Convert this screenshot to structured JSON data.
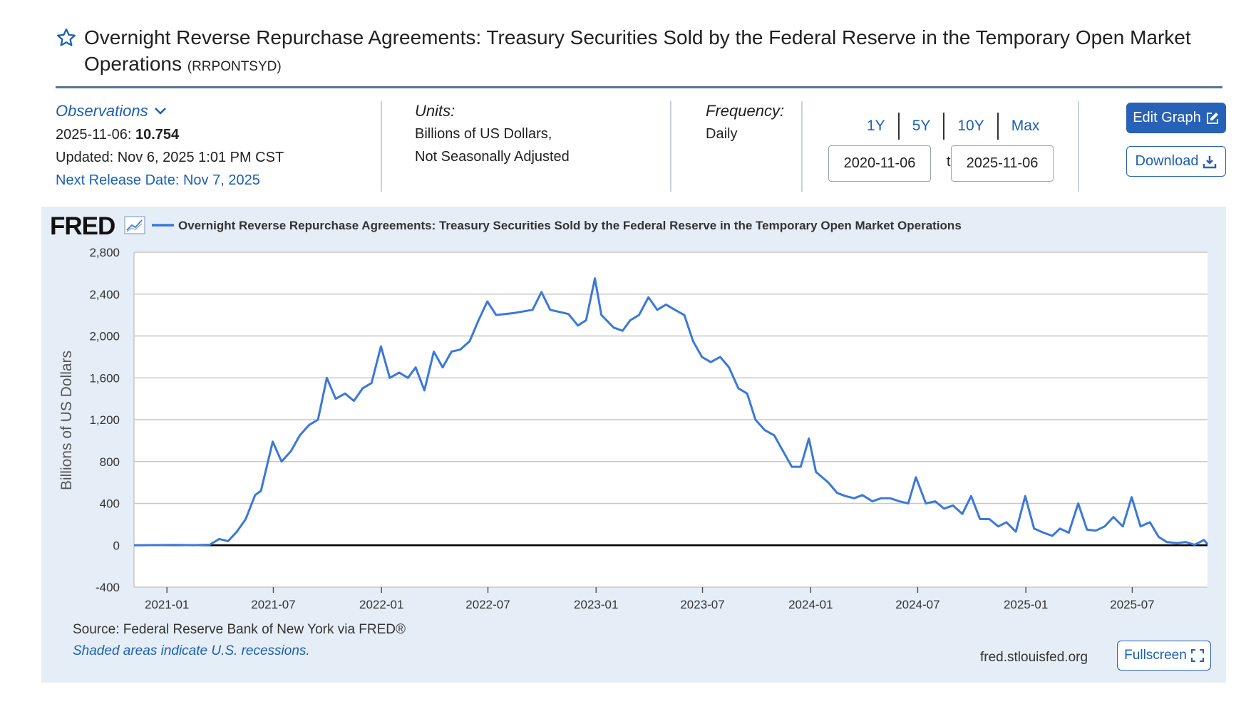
{
  "header": {
    "title": "Overnight Reverse Repurchase Agreements: Treasury Securities Sold by the Federal Reserve in the Temporary Open Market Operations",
    "series_id": "(RRPONTSYD)"
  },
  "observations": {
    "toggle_label": "Observations",
    "latest_date": "2025-11-06:",
    "latest_value": "10.754",
    "updated": "Updated: Nov 6, 2025 1:01 PM CST",
    "next_release": "Next Release Date: Nov 7, 2025"
  },
  "units": {
    "label": "Units:",
    "line1": "Billions of US Dollars,",
    "line2": "Not Seasonally Adjusted"
  },
  "frequency": {
    "label": "Frequency:",
    "value": "Daily"
  },
  "range": {
    "buttons": [
      "1Y",
      "5Y",
      "10Y",
      "Max"
    ],
    "start": "2020-11-06",
    "to": "to",
    "end": "2025-11-06"
  },
  "actions": {
    "edit_graph": "Edit Graph",
    "download": "Download",
    "fullscreen": "Fullscreen"
  },
  "footer": {
    "source": "Source: Federal Reserve Bank of New York via FRED®",
    "recession_note": "Shaded areas indicate U.S. recessions.",
    "url": "fred.stlouisfed.org"
  },
  "logo": "FRED",
  "colors": {
    "series_line": "#3b78d8",
    "accent": "#2762b8",
    "panel_bg": "#e5eef7"
  },
  "chart_data": {
    "type": "line",
    "legend_label": "Overnight Reverse Repurchase Agreements: Treasury Securities Sold by the Federal Reserve in the Temporary Open Market Operations",
    "ylabel": "Billions of US Dollars",
    "xlabel": "",
    "ylim": [
      -400,
      2800
    ],
    "y_ticks": [
      2800,
      2400,
      2000,
      1600,
      1200,
      800,
      400,
      0,
      -400
    ],
    "y_tick_labels": [
      "2,800",
      "2,400",
      "2,000",
      "1,600",
      "1,200",
      "800",
      "400",
      "0",
      "-400"
    ],
    "x_range": [
      "2020-11-06",
      "2025-11-06"
    ],
    "x_ticks": [
      "2021-01",
      "2021-07",
      "2022-01",
      "2022-07",
      "2023-01",
      "2023-07",
      "2024-01",
      "2024-07",
      "2025-01",
      "2025-07"
    ],
    "grid": true,
    "series": [
      {
        "name": "RRPONTSYD",
        "points": [
          [
            "2020-11-06",
            0
          ],
          [
            "2020-12-15",
            2
          ],
          [
            "2021-01-15",
            3
          ],
          [
            "2021-02-15",
            1
          ],
          [
            "2021-03-15",
            5
          ],
          [
            "2021-03-31",
            60
          ],
          [
            "2021-04-15",
            40
          ],
          [
            "2021-04-30",
            130
          ],
          [
            "2021-05-15",
            250
          ],
          [
            "2021-05-31",
            480
          ],
          [
            "2021-06-10",
            520
          ],
          [
            "2021-06-30",
            990
          ],
          [
            "2021-07-15",
            800
          ],
          [
            "2021-07-31",
            900
          ],
          [
            "2021-08-15",
            1050
          ],
          [
            "2021-08-31",
            1150
          ],
          [
            "2021-09-15",
            1200
          ],
          [
            "2021-09-30",
            1600
          ],
          [
            "2021-10-15",
            1400
          ],
          [
            "2021-10-31",
            1450
          ],
          [
            "2021-11-15",
            1380
          ],
          [
            "2021-11-30",
            1500
          ],
          [
            "2021-12-15",
            1550
          ],
          [
            "2021-12-31",
            1900
          ],
          [
            "2022-01-15",
            1600
          ],
          [
            "2022-01-31",
            1650
          ],
          [
            "2022-02-15",
            1600
          ],
          [
            "2022-02-28",
            1700
          ],
          [
            "2022-03-15",
            1480
          ],
          [
            "2022-03-31",
            1850
          ],
          [
            "2022-04-15",
            1700
          ],
          [
            "2022-04-30",
            1850
          ],
          [
            "2022-05-15",
            1870
          ],
          [
            "2022-05-31",
            1950
          ],
          [
            "2022-06-15",
            2150
          ],
          [
            "2022-06-30",
            2330
          ],
          [
            "2022-07-15",
            2200
          ],
          [
            "2022-08-15",
            2220
          ],
          [
            "2022-09-15",
            2250
          ],
          [
            "2022-09-30",
            2420
          ],
          [
            "2022-10-15",
            2250
          ],
          [
            "2022-11-15",
            2210
          ],
          [
            "2022-12-01",
            2100
          ],
          [
            "2022-12-15",
            2150
          ],
          [
            "2022-12-30",
            2550
          ],
          [
            "2023-01-10",
            2200
          ],
          [
            "2023-01-31",
            2080
          ],
          [
            "2023-02-15",
            2050
          ],
          [
            "2023-02-28",
            2150
          ],
          [
            "2023-03-15",
            2200
          ],
          [
            "2023-03-31",
            2370
          ],
          [
            "2023-04-15",
            2250
          ],
          [
            "2023-04-30",
            2300
          ],
          [
            "2023-05-15",
            2250
          ],
          [
            "2023-05-31",
            2200
          ],
          [
            "2023-06-15",
            1950
          ],
          [
            "2023-06-30",
            1800
          ],
          [
            "2023-07-15",
            1750
          ],
          [
            "2023-07-31",
            1800
          ],
          [
            "2023-08-15",
            1700
          ],
          [
            "2023-08-31",
            1500
          ],
          [
            "2023-09-15",
            1450
          ],
          [
            "2023-09-29",
            1200
          ],
          [
            "2023-10-15",
            1100
          ],
          [
            "2023-10-31",
            1050
          ],
          [
            "2023-11-15",
            900
          ],
          [
            "2023-11-30",
            750
          ],
          [
            "2023-12-15",
            750
          ],
          [
            "2023-12-29",
            1020
          ],
          [
            "2024-01-10",
            700
          ],
          [
            "2024-01-31",
            600
          ],
          [
            "2024-02-15",
            500
          ],
          [
            "2024-02-29",
            470
          ],
          [
            "2024-03-15",
            450
          ],
          [
            "2024-03-29",
            480
          ],
          [
            "2024-04-15",
            420
          ],
          [
            "2024-04-30",
            450
          ],
          [
            "2024-05-15",
            450
          ],
          [
            "2024-05-31",
            420
          ],
          [
            "2024-06-15",
            400
          ],
          [
            "2024-06-28",
            650
          ],
          [
            "2024-07-15",
            400
          ],
          [
            "2024-07-31",
            420
          ],
          [
            "2024-08-15",
            350
          ],
          [
            "2024-08-30",
            380
          ],
          [
            "2024-09-15",
            300
          ],
          [
            "2024-09-30",
            470
          ],
          [
            "2024-10-15",
            250
          ],
          [
            "2024-10-31",
            250
          ],
          [
            "2024-11-15",
            180
          ],
          [
            "2024-11-29",
            220
          ],
          [
            "2024-12-15",
            130
          ],
          [
            "2024-12-31",
            470
          ],
          [
            "2025-01-15",
            160
          ],
          [
            "2025-01-31",
            120
          ],
          [
            "2025-02-15",
            90
          ],
          [
            "2025-02-28",
            160
          ],
          [
            "2025-03-15",
            120
          ],
          [
            "2025-03-31",
            400
          ],
          [
            "2025-04-15",
            150
          ],
          [
            "2025-04-30",
            140
          ],
          [
            "2025-05-15",
            180
          ],
          [
            "2025-05-30",
            270
          ],
          [
            "2025-06-15",
            180
          ],
          [
            "2025-06-30",
            460
          ],
          [
            "2025-07-15",
            180
          ],
          [
            "2025-07-31",
            220
          ],
          [
            "2025-08-15",
            80
          ],
          [
            "2025-08-29",
            30
          ],
          [
            "2025-09-15",
            20
          ],
          [
            "2025-09-30",
            30
          ],
          [
            "2025-10-15",
            5
          ],
          [
            "2025-10-31",
            50
          ],
          [
            "2025-11-06",
            10.754
          ]
        ]
      }
    ]
  }
}
